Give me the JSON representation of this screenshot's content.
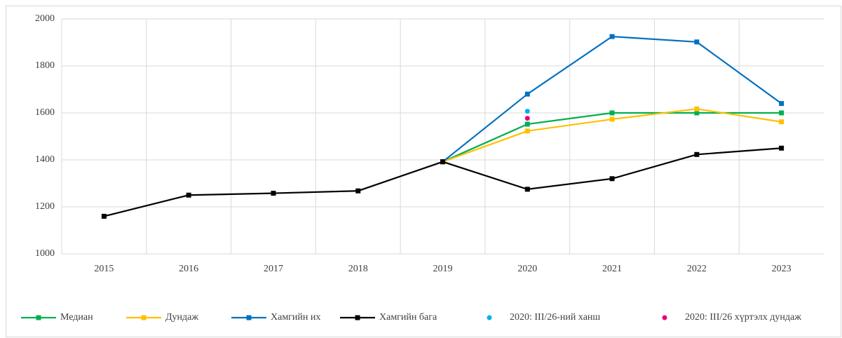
{
  "chart_data": {
    "type": "line",
    "categories": [
      "2015",
      "2016",
      "2017",
      "2018",
      "2019",
      "2020",
      "2021",
      "2022",
      "2023"
    ],
    "ylim": [
      1000,
      2000
    ],
    "yticks": [
      1000,
      1200,
      1400,
      1600,
      1800,
      2000
    ],
    "grid": true,
    "legend": "bottom",
    "series": [
      {
        "name": "Медиан",
        "color": "#00b050",
        "style": "line",
        "values": [
          null,
          null,
          null,
          null,
          1392,
          1552,
          1600,
          1600,
          1600
        ]
      },
      {
        "name": "Дундаж",
        "color": "#ffc000",
        "style": "line",
        "values": [
          null,
          null,
          null,
          null,
          1392,
          1523,
          1573,
          1617,
          1562
        ]
      },
      {
        "name": "Хамгийн их",
        "color": "#0070c0",
        "style": "line",
        "values": [
          null,
          null,
          null,
          null,
          1392,
          1680,
          1925,
          1902,
          1640
        ]
      },
      {
        "name": "Хамгийн бага",
        "color": "#000000",
        "style": "line",
        "values": [
          1160,
          1250,
          1258,
          1268,
          1392,
          1275,
          1320,
          1423,
          1450
        ]
      },
      {
        "name": "2020: III/26-ний ханш",
        "color": "#00b0f0",
        "style": "marker",
        "values": [
          null,
          null,
          null,
          null,
          null,
          1607,
          null,
          null,
          null
        ]
      },
      {
        "name": "2020: III/26 хүртэлх дундаж",
        "color": "#e6007e",
        "style": "marker",
        "values": [
          null,
          null,
          null,
          null,
          null,
          1577,
          null,
          null,
          null
        ]
      }
    ]
  }
}
